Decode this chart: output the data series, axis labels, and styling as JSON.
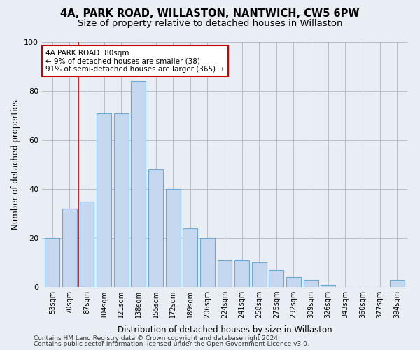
{
  "title": "4A, PARK ROAD, WILLASTON, NANTWICH, CW5 6PW",
  "subtitle": "Size of property relative to detached houses in Willaston",
  "xlabel": "Distribution of detached houses by size in Willaston",
  "ylabel": "Number of detached properties",
  "categories": [
    "53sqm",
    "70sqm",
    "87sqm",
    "104sqm",
    "121sqm",
    "138sqm",
    "155sqm",
    "172sqm",
    "189sqm",
    "206sqm",
    "224sqm",
    "241sqm",
    "258sqm",
    "275sqm",
    "292sqm",
    "309sqm",
    "326sqm",
    "343sqm",
    "360sqm",
    "377sqm",
    "394sqm"
  ],
  "values": [
    20,
    32,
    35,
    71,
    71,
    84,
    48,
    40,
    24,
    20,
    11,
    11,
    10,
    7,
    4,
    3,
    1,
    0,
    0,
    0,
    3
  ],
  "bar_color": "#c5d8ef",
  "bar_edge_color": "#6aaad4",
  "bar_linewidth": 0.8,
  "grid_color": "#b0b8c4",
  "background_color": "#e8eef4",
  "vline_x": 1.5,
  "vline_color": "#cc0000",
  "annotation_line1": "4A PARK ROAD: 80sqm",
  "annotation_line2": "← 9% of detached houses are smaller (38)",
  "annotation_line3": "91% of semi-detached houses are larger (365) →",
  "annotation_box_color": "#ffffff",
  "annotation_box_edge": "#cc0000",
  "ylim": [
    0,
    100
  ],
  "yticks": [
    0,
    20,
    40,
    60,
    80,
    100
  ],
  "footer1": "Contains HM Land Registry data © Crown copyright and database right 2024.",
  "footer2": "Contains public sector information licensed under the Open Government Licence v3.0.",
  "title_fontsize": 10.5,
  "subtitle_fontsize": 9.5,
  "xlabel_fontsize": 8.5,
  "ylabel_fontsize": 8.5,
  "tick_fontsize": 7,
  "annotation_fontsize": 7.5,
  "footer_fontsize": 6.5
}
